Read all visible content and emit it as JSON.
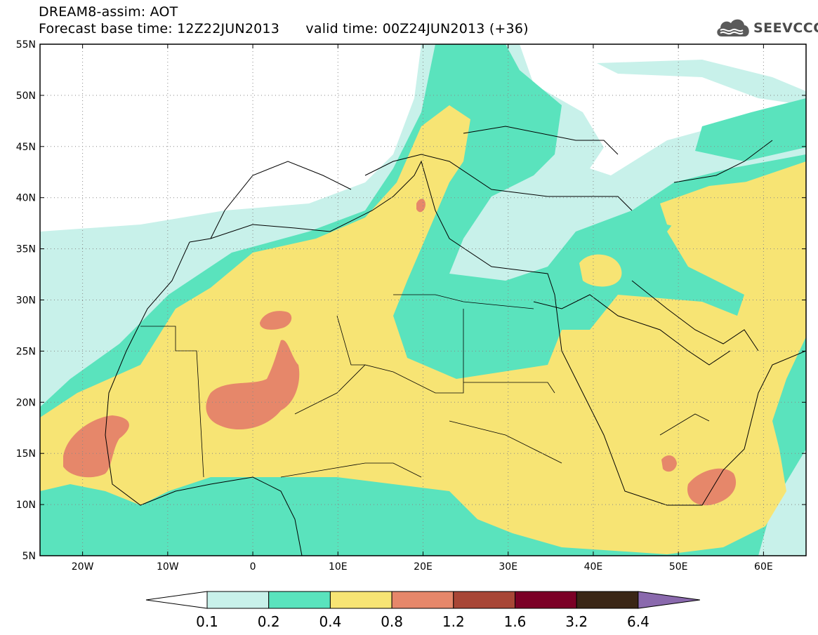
{
  "title": {
    "line1": "DREAM8-assim: AOT",
    "line2": "Forecast base time: 12Z22JUN2013      valid time: 00Z24JUN2013 (+36)"
  },
  "logo": {
    "text": "SEEVCCC",
    "icon": "cloud-icon"
  },
  "map": {
    "lon_range": [
      -25,
      65
    ],
    "lat_range": [
      5,
      55
    ],
    "x_ticks": [
      {
        "lon": -20,
        "label": "20W"
      },
      {
        "lon": -10,
        "label": "10W"
      },
      {
        "lon": 0,
        "label": "0"
      },
      {
        "lon": 10,
        "label": "10E"
      },
      {
        "lon": 20,
        "label": "20E"
      },
      {
        "lon": 30,
        "label": "30E"
      },
      {
        "lon": 40,
        "label": "40E"
      },
      {
        "lon": 50,
        "label": "50E"
      },
      {
        "lon": 60,
        "label": "60E"
      }
    ],
    "y_ticks": [
      {
        "lat": 55,
        "label": "55N"
      },
      {
        "lat": 50,
        "label": "50N"
      },
      {
        "lat": 45,
        "label": "45N"
      },
      {
        "lat": 40,
        "label": "40N"
      },
      {
        "lat": 35,
        "label": "35N"
      },
      {
        "lat": 30,
        "label": "30N"
      },
      {
        "lat": 25,
        "label": "25N"
      },
      {
        "lat": 20,
        "label": "20N"
      },
      {
        "lat": 15,
        "label": "15N"
      },
      {
        "lat": 10,
        "label": "10N"
      },
      {
        "lat": 5,
        "label": "5N"
      }
    ],
    "grid": "dotted"
  },
  "legend": {
    "levels": [
      "0.1",
      "0.2",
      "0.4",
      "0.8",
      "1.2",
      "1.6",
      "3.2",
      "6.4"
    ],
    "colors": [
      "#ffffff",
      "#c8f1ea",
      "#5ae3bd",
      "#f7e474",
      "#e6876a",
      "#a84636",
      "#7b0026",
      "#3a2616",
      "#8a69ad"
    ]
  }
}
